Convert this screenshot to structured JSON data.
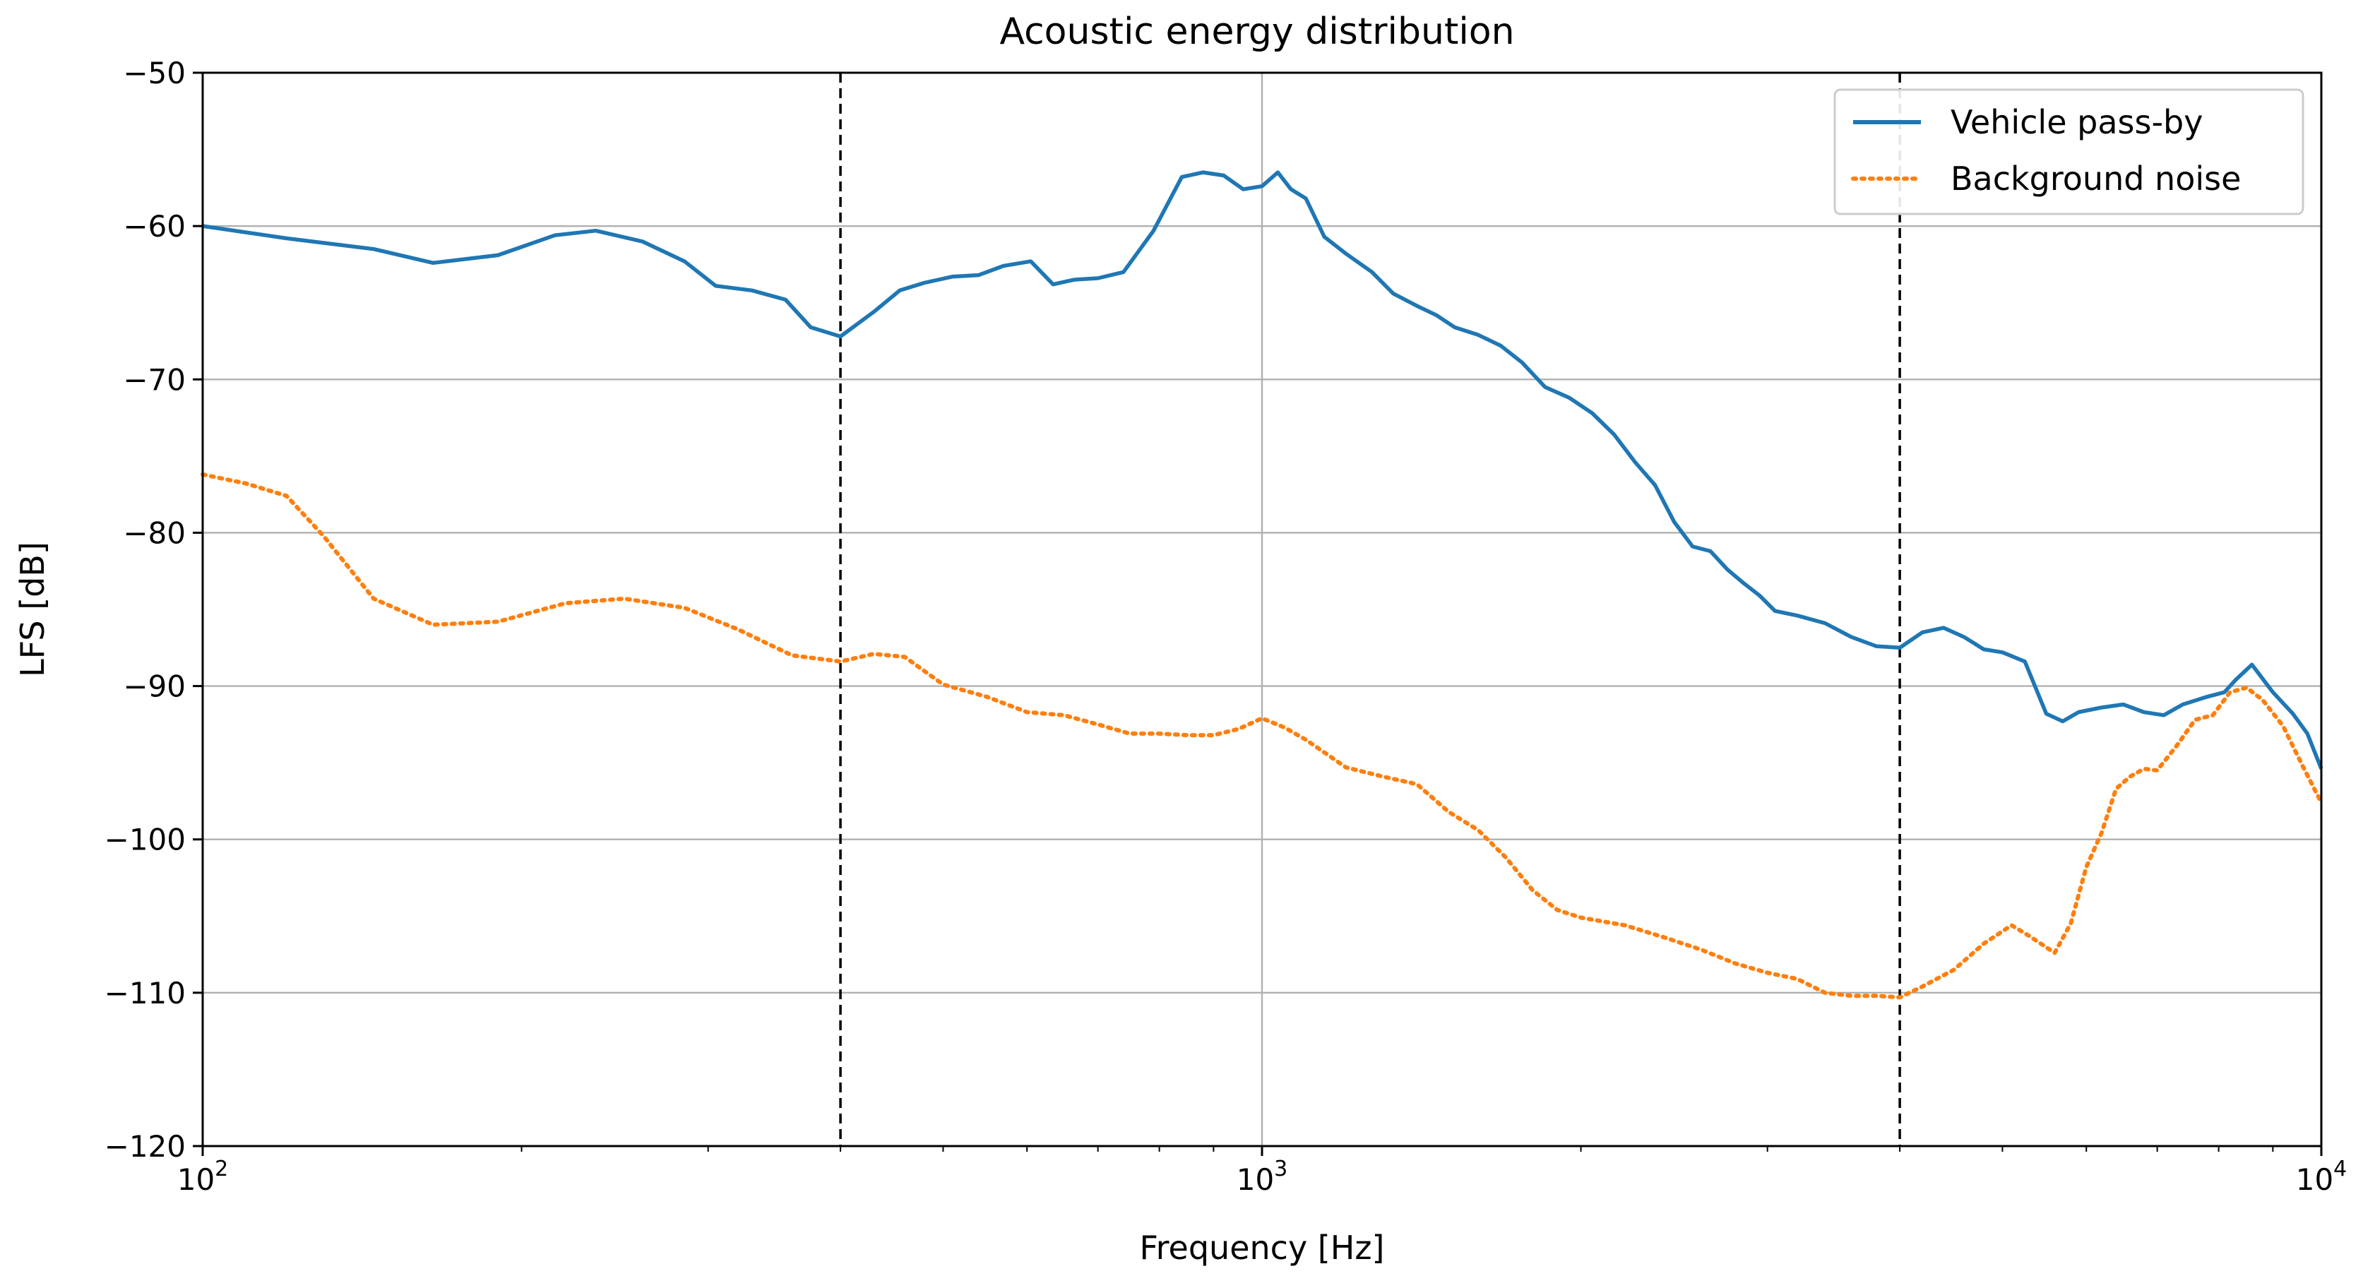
{
  "chart_data": {
    "type": "line",
    "title": "Acoustic energy distribution",
    "xlabel": "Frequency [Hz]",
    "ylabel": "LFS [dB]",
    "xscale": "log",
    "xlim": [
      100,
      10000
    ],
    "ylim": [
      -120,
      -50
    ],
    "grid": true,
    "legend_position": "top-right",
    "yticks": [
      -50,
      -60,
      -70,
      -80,
      -90,
      -100,
      -110,
      -120
    ],
    "ytick_labels": [
      "−50",
      "−60",
      "−70",
      "−80",
      "−90",
      "−100",
      "−110",
      "−120"
    ],
    "xticks": [
      100,
      1000,
      10000
    ],
    "xtick_labels": [
      {
        "base": "10",
        "exp": "2"
      },
      {
        "base": "10",
        "exp": "3"
      },
      {
        "base": "10",
        "exp": "4"
      }
    ],
    "vlines": [
      400,
      4000
    ],
    "series": [
      {
        "name": "Vehicle pass-by",
        "color": "#1f77b4",
        "style": "solid",
        "x": [
          100,
          120,
          145,
          165,
          190,
          215,
          235,
          260,
          285,
          305,
          330,
          355,
          375,
          400,
          430,
          455,
          480,
          510,
          540,
          570,
          605,
          635,
          665,
          700,
          740,
          790,
          840,
          880,
          920,
          960,
          1000,
          1035,
          1065,
          1100,
          1145,
          1200,
          1270,
          1330,
          1400,
          1460,
          1520,
          1600,
          1680,
          1760,
          1850,
          1950,
          2050,
          2150,
          2250,
          2350,
          2450,
          2550,
          2650,
          2750,
          2850,
          2950,
          3050,
          3200,
          3400,
          3600,
          3800,
          4000,
          4200,
          4400,
          4600,
          4800,
          5000,
          5250,
          5500,
          5700,
          5900,
          6200,
          6500,
          6800,
          7100,
          7400,
          7800,
          8100,
          8300,
          8600,
          9000,
          9400,
          9700,
          10000
        ],
        "y": [
          -60,
          -60.8,
          -61.5,
          -62.4,
          -61.9,
          -60.6,
          -60.3,
          -61,
          -62.3,
          -63.9,
          -64.2,
          -64.8,
          -66.6,
          -67.2,
          -65.6,
          -64.2,
          -63.7,
          -63.3,
          -63.2,
          -62.6,
          -62.3,
          -63.8,
          -63.5,
          -63.4,
          -63,
          -60.3,
          -56.8,
          -56.5,
          -56.7,
          -57.6,
          -57.4,
          -56.5,
          -57.6,
          -58.2,
          -60.7,
          -61.8,
          -63,
          -64.4,
          -65.2,
          -65.8,
          -66.6,
          -67.1,
          -67.8,
          -68.9,
          -70.5,
          -71.2,
          -72.2,
          -73.6,
          -75.4,
          -76.9,
          -79.3,
          -80.9,
          -81.2,
          -82.4,
          -83.3,
          -84.1,
          -85.1,
          -85.4,
          -85.9,
          -86.8,
          -87.4,
          -87.5,
          -86.5,
          -86.2,
          -86.8,
          -87.6,
          -87.8,
          -88.4,
          -91.8,
          -92.3,
          -91.7,
          -91.4,
          -91.2,
          -91.7,
          -91.9,
          -91.2,
          -90.7,
          -90.4,
          -89.6,
          -88.6,
          -90.4,
          -91.8,
          -93.1,
          -95.4
        ]
      },
      {
        "name": "Background noise",
        "color": "#ff7f0e",
        "style": "dotted",
        "x": [
          100,
          110,
          120,
          130,
          145,
          165,
          190,
          220,
          250,
          285,
          320,
          360,
          400,
          430,
          460,
          500,
          550,
          600,
          650,
          700,
          750,
          800,
          850,
          900,
          950,
          1000,
          1050,
          1100,
          1200,
          1300,
          1400,
          1500,
          1600,
          1700,
          1800,
          1900,
          2000,
          2200,
          2400,
          2600,
          2800,
          3000,
          3200,
          3400,
          3600,
          3800,
          4000,
          4200,
          4500,
          4800,
          5100,
          5300,
          5600,
          5800,
          6000,
          6200,
          6400,
          6600,
          6800,
          7000,
          7300,
          7600,
          7900,
          8200,
          8500,
          8800,
          9200,
          9600,
          10000
        ],
        "y": [
          -76.2,
          -76.8,
          -77.6,
          -80.2,
          -84.3,
          -86,
          -85.8,
          -84.6,
          -84.3,
          -84.9,
          -86.3,
          -88,
          -88.4,
          -87.9,
          -88.1,
          -89.9,
          -90.7,
          -91.7,
          -91.9,
          -92.5,
          -93.1,
          -93.1,
          -93.2,
          -93.2,
          -92.8,
          -92.1,
          -92.7,
          -93.5,
          -95.3,
          -95.9,
          -96.4,
          -98.2,
          -99.4,
          -101.2,
          -103.3,
          -104.6,
          -105.1,
          -105.6,
          -106.4,
          -107.2,
          -108.1,
          -108.7,
          -109.1,
          -110,
          -110.2,
          -110.2,
          -110.3,
          -109.6,
          -108.5,
          -106.8,
          -105.6,
          -106.3,
          -107.4,
          -105.5,
          -101.8,
          -99.6,
          -96.7,
          -95.9,
          -95.4,
          -95.5,
          -93.9,
          -92.2,
          -91.9,
          -90.4,
          -90.1,
          -90.9,
          -92.6,
          -95.2,
          -97.6
        ]
      }
    ]
  }
}
